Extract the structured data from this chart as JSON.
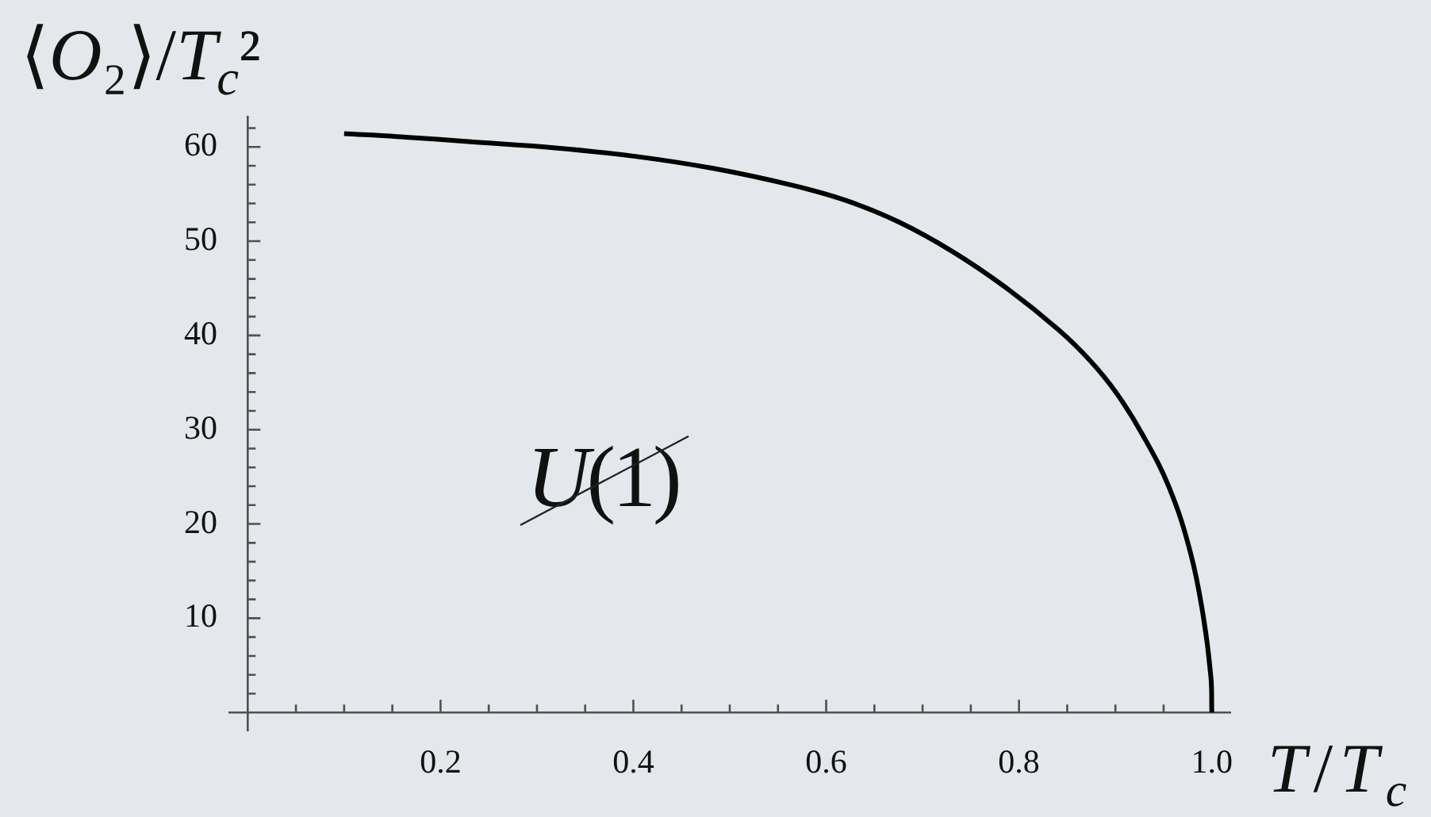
{
  "chart_data": {
    "type": "line",
    "ylabel": "⟨O₂⟩/T$_{c}$²",
    "xlabel": "T/T$_{c}$",
    "annotations": [
      "U(1)"
    ],
    "x": [
      0.1,
      0.155,
      0.237,
      0.319,
      0.402,
      0.484,
      0.566,
      0.621,
      0.676,
      0.731,
      0.786,
      0.841,
      0.874,
      0.901,
      0.928,
      0.956,
      0.978,
      0.991,
      0.999,
      1.0
    ],
    "series": [
      {
        "color": "#000000",
        "values": [
          61.4,
          61.1,
          60.5,
          59.9,
          59.0,
          57.7,
          55.9,
          54.3,
          52.0,
          48.9,
          45.1,
          40.6,
          37.3,
          33.9,
          29.5,
          23.8,
          16.9,
          10.3,
          3.8,
          0
        ]
      }
    ],
    "xlim": [
      -0.02,
      1.02
    ],
    "ylim": [
      -2,
      63.3
    ],
    "xticks": [
      {
        "value": 0.05,
        "label": null
      },
      {
        "value": 0.1,
        "label": null
      },
      {
        "value": 0.15,
        "label": null
      },
      0.2,
      {
        "value": 0.25,
        "label": null
      },
      {
        "value": 0.3,
        "label": null
      },
      {
        "value": 0.35,
        "label": null
      },
      0.4,
      {
        "value": 0.45,
        "label": null
      },
      {
        "value": 0.5,
        "label": null
      },
      {
        "value": 0.55,
        "label": null
      },
      0.6,
      {
        "value": 0.65,
        "label": null
      },
      {
        "value": 0.7,
        "label": null
      },
      {
        "value": 0.75,
        "label": null
      },
      0.8,
      {
        "value": 0.85,
        "label": null
      },
      {
        "value": 0.9,
        "label": null
      },
      {
        "value": 0.95,
        "label": null
      },
      {
        "value": 1,
        "label": "1.0"
      }
    ],
    "yticks": [
      {
        "value": 2,
        "label": null
      },
      {
        "value": 4,
        "label": null
      },
      {
        "value": 6,
        "label": null
      },
      {
        "value": 8,
        "label": null
      },
      10,
      {
        "value": 12,
        "label": null
      },
      {
        "value": 14,
        "label": null
      },
      {
        "value": 16,
        "label": null
      },
      {
        "value": 18,
        "label": null
      },
      20,
      {
        "value": 22,
        "label": null
      },
      {
        "value": 24,
        "label": null
      },
      {
        "value": 26,
        "label": null
      },
      {
        "value": 28,
        "label": null
      },
      30,
      {
        "value": 32,
        "label": null
      },
      {
        "value": 34,
        "label": null
      },
      {
        "value": 36,
        "label": null
      },
      {
        "value": 38,
        "label": null
      },
      40,
      {
        "value": 42,
        "label": null
      },
      {
        "value": 44,
        "label": null
      },
      {
        "value": 46,
        "label": null
      },
      {
        "value": 48,
        "label": null
      },
      50,
      {
        "value": 52,
        "label": null
      },
      {
        "value": 54,
        "label": null
      },
      {
        "value": 56,
        "label": null
      },
      {
        "value": 58,
        "label": null
      },
      60,
      {
        "value": 62,
        "label": null
      }
    ],
    "marker": "none",
    "line_style": "solid"
  }
}
